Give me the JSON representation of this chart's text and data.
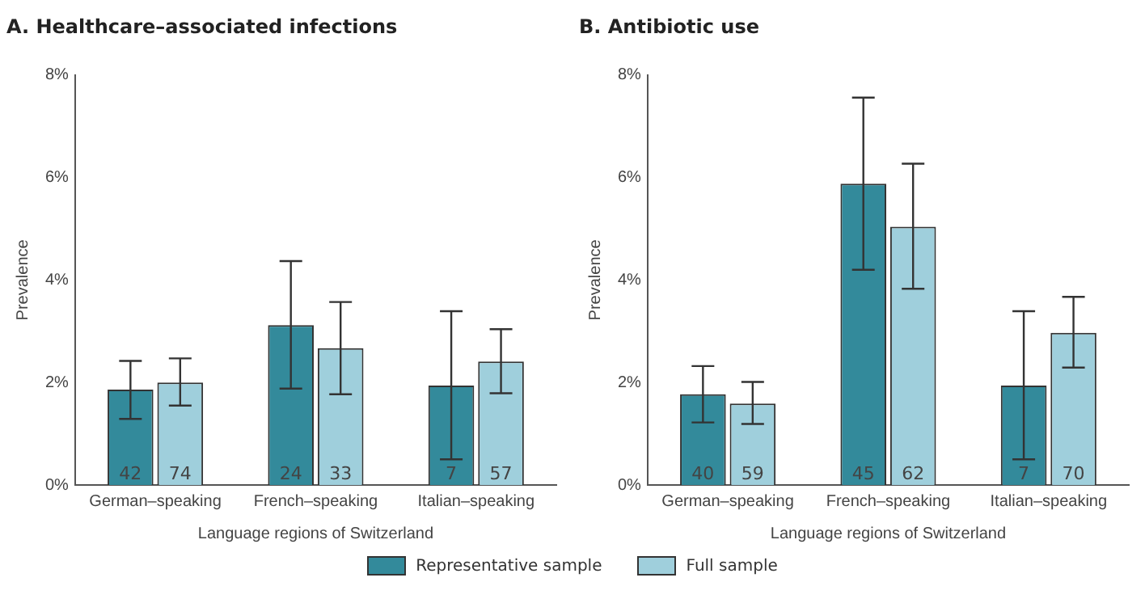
{
  "chart_data": [
    {
      "type": "bar",
      "title": "A. Healthcare–associated infections",
      "xlabel": "Language regions of Switzerland",
      "ylabel": "Prevalence",
      "categories": [
        "German–speaking",
        "French–speaking",
        "Italian–speaking"
      ],
      "series": [
        {
          "color": "#338a9b",
          "values": [
            1.86,
            3.12,
            1.94
          ],
          "errors": [
            [
              1.29,
              2.42
            ],
            [
              1.88,
              4.37
            ],
            [
              0.5,
              3.39
            ]
          ]
        },
        {
          "color": "#9fcfdc",
          "values": [
            2.0,
            2.67,
            2.41
          ],
          "errors": [
            [
              1.55,
              2.47
            ],
            [
              1.77,
              3.57
            ],
            [
              1.79,
              3.04
            ]
          ]
        }
      ],
      "annotations": [
        {
          "text": "42",
          "x": "German–speaking",
          "y": 0
        },
        {
          "text": "74",
          "x": "German–speaking",
          "y": 0
        },
        {
          "text": "24",
          "x": "French–speaking",
          "y": 0
        },
        {
          "text": "33",
          "x": "French–speaking",
          "y": 0
        },
        {
          "text": "7",
          "x": "Italian–speaking",
          "y": 0
        },
        {
          "text": "57",
          "x": "Italian–speaking",
          "y": 0
        }
      ],
      "ylim": [
        0,
        8
      ],
      "yticks": [
        {
          "value": 0,
          "label": "0%"
        },
        {
          "value": 2,
          "label": "2%"
        },
        {
          "value": 4,
          "label": "4%"
        },
        {
          "value": 6,
          "label": "6%"
        },
        {
          "value": 8,
          "label": "8%"
        }
      ],
      "grid": false
    },
    {
      "type": "bar",
      "title": "B. Antibiotic use",
      "xlabel": "Language regions of Switzerland",
      "ylabel": "Prevalence",
      "categories": [
        "German–speaking",
        "French–speaking",
        "Italian–speaking"
      ],
      "series": [
        {
          "name": "Representative sample",
          "color": "#338a9b",
          "values": [
            1.77,
            5.88,
            1.94
          ],
          "errors": [
            [
              1.22,
              2.32
            ],
            [
              4.2,
              7.56
            ],
            [
              0.5,
              3.39
            ]
          ]
        },
        {
          "name": "Full sample",
          "color": "#9fcfdc",
          "values": [
            1.59,
            5.04,
            2.97
          ],
          "errors": [
            [
              1.19,
              2.01
            ],
            [
              3.83,
              6.27
            ],
            [
              2.29,
              3.67
            ]
          ]
        }
      ],
      "annotations": [
        {
          "text": "40",
          "x": "German–speaking",
          "y": 0
        },
        {
          "text": "59",
          "x": "German–speaking",
          "y": 0
        },
        {
          "text": "45",
          "x": "French–speaking",
          "y": 0
        },
        {
          "text": "62",
          "x": "French–speaking",
          "y": 0
        },
        {
          "text": "7",
          "x": "Italian–speaking",
          "y": 0
        },
        {
          "text": "70",
          "x": "Italian–speaking",
          "y": 0
        }
      ],
      "ylim": [
        0,
        8
      ],
      "yticks": [
        {
          "value": 0,
          "label": "0%"
        },
        {
          "value": 2,
          "label": "2%"
        },
        {
          "value": 4,
          "label": "4%"
        },
        {
          "value": 6,
          "label": "6%"
        },
        {
          "value": 8,
          "label": "8%"
        }
      ],
      "grid": false,
      "legend": "bottom"
    }
  ]
}
